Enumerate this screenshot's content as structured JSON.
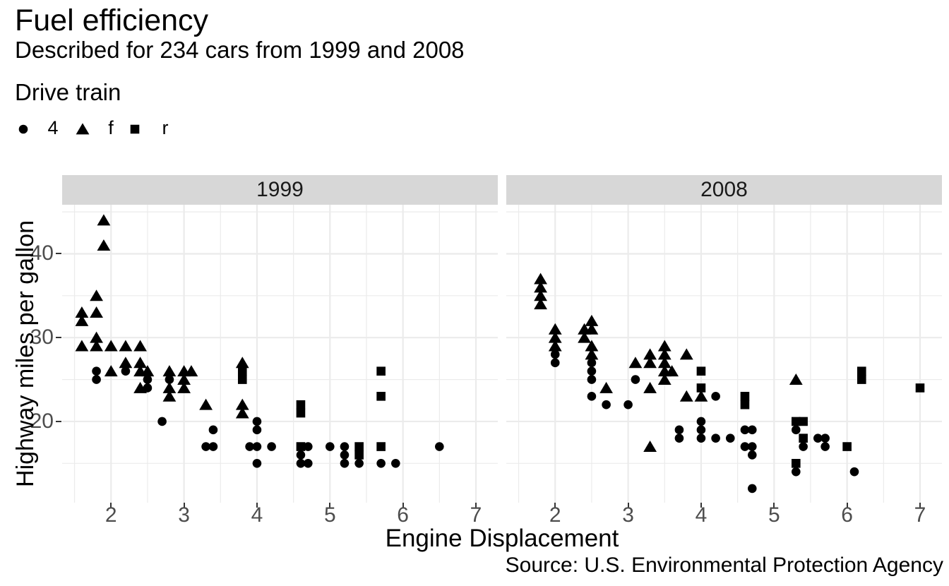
{
  "title": "Fuel efficiency",
  "subtitle": "Described for 234 cars from 1999 and 2008",
  "caption": "Source: U.S. Environmental Protection Agency",
  "legend": {
    "title": "Drive train",
    "items": [
      {
        "label": "4",
        "marker": "circle"
      },
      {
        "label": "f",
        "marker": "triangle"
      },
      {
        "label": "r",
        "marker": "square"
      }
    ]
  },
  "colors": {
    "marker": "#000000",
    "grid": "#ebebeb",
    "panel_bg": "#ffffff",
    "strip_bg": "#d7d7d7",
    "strip_text": "#1a1a1a",
    "tick_label": "#4d4d4d",
    "tick_mark": "#333333",
    "text": "#000000"
  },
  "chart_data": {
    "type": "scatter",
    "title": "Fuel efficiency",
    "subtitle": "Described for 234 cars from 1999 and 2008",
    "xlabel": "Engine Displacement",
    "ylabel": "Highway miles per gallon",
    "legend_title": "Drive train",
    "legend_position": "top-left",
    "grid": true,
    "xlim": [
      1.33,
      7.3
    ],
    "ylim": [
      10.31,
      45.85
    ],
    "x_ticks": [
      2,
      3,
      4,
      5,
      6,
      7
    ],
    "y_ticks": [
      20,
      30,
      40
    ],
    "x_minor": [
      1.5,
      2.5,
      3.5,
      4.5,
      5.5,
      6.5
    ],
    "y_minor": [
      15,
      25,
      35,
      45
    ],
    "facets": [
      {
        "label": "1999",
        "series": [
          {
            "name": "4",
            "marker": "circle",
            "points": [
              [
                1.8,
                26
              ],
              [
                1.8,
                25
              ],
              [
                2.2,
                26
              ],
              [
                2.5,
                25
              ],
              [
                2.5,
                24
              ],
              [
                2.7,
                20
              ],
              [
                2.8,
                25
              ],
              [
                3.3,
                17
              ],
              [
                3.4,
                19
              ],
              [
                3.4,
                17
              ],
              [
                3.9,
                17
              ],
              [
                4.0,
                20
              ],
              [
                4.0,
                19
              ],
              [
                4.0,
                17
              ],
              [
                4.0,
                15
              ],
              [
                4.2,
                17
              ],
              [
                4.6,
                16
              ],
              [
                4.6,
                15
              ],
              [
                4.7,
                17
              ],
              [
                4.7,
                15
              ],
              [
                5.0,
                17
              ],
              [
                5.2,
                17
              ],
              [
                5.2,
                16
              ],
              [
                5.2,
                15
              ],
              [
                5.4,
                15
              ],
              [
                5.7,
                15
              ],
              [
                5.9,
                15
              ],
              [
                6.5,
                17
              ]
            ]
          },
          {
            "name": "f",
            "marker": "triangle",
            "points": [
              [
                1.6,
                33
              ],
              [
                1.6,
                32
              ],
              [
                1.6,
                29
              ],
              [
                1.8,
                35
              ],
              [
                1.8,
                33
              ],
              [
                1.8,
                30
              ],
              [
                1.8,
                29
              ],
              [
                1.9,
                44
              ],
              [
                1.9,
                41
              ],
              [
                2.0,
                29
              ],
              [
                2.0,
                26
              ],
              [
                2.2,
                29
              ],
              [
                2.2,
                27
              ],
              [
                2.4,
                29
              ],
              [
                2.4,
                27
              ],
              [
                2.4,
                26
              ],
              [
                2.4,
                24
              ],
              [
                2.5,
                26
              ],
              [
                2.8,
                26
              ],
              [
                2.8,
                24
              ],
              [
                2.8,
                23
              ],
              [
                3.0,
                26
              ],
              [
                3.0,
                25
              ],
              [
                3.0,
                24
              ],
              [
                3.1,
                26
              ],
              [
                3.3,
                22
              ],
              [
                3.8,
                27
              ],
              [
                3.8,
                22
              ],
              [
                3.8,
                21
              ]
            ]
          },
          {
            "name": "r",
            "marker": "square",
            "points": [
              [
                3.8,
                26
              ],
              [
                3.8,
                25
              ],
              [
                4.6,
                22
              ],
              [
                4.6,
                21
              ],
              [
                4.6,
                17
              ],
              [
                5.4,
                17
              ],
              [
                5.4,
                16
              ],
              [
                5.7,
                26
              ],
              [
                5.7,
                23
              ],
              [
                5.7,
                17
              ]
            ]
          }
        ]
      },
      {
        "label": "2008",
        "series": [
          {
            "name": "4",
            "marker": "circle",
            "points": [
              [
                2.0,
                28
              ],
              [
                2.0,
                27
              ],
              [
                2.5,
                27
              ],
              [
                2.5,
                26
              ],
              [
                2.5,
                25
              ],
              [
                2.5,
                23
              ],
              [
                2.7,
                22
              ],
              [
                3.0,
                22
              ],
              [
                3.1,
                25
              ],
              [
                3.7,
                19
              ],
              [
                3.7,
                18
              ],
              [
                4.0,
                20
              ],
              [
                4.0,
                19
              ],
              [
                4.0,
                18
              ],
              [
                4.2,
                23
              ],
              [
                4.2,
                18
              ],
              [
                4.4,
                18
              ],
              [
                4.6,
                19
              ],
              [
                4.6,
                17
              ],
              [
                4.7,
                19
              ],
              [
                4.7,
                17
              ],
              [
                4.7,
                16
              ],
              [
                4.7,
                12
              ],
              [
                5.3,
                19
              ],
              [
                5.3,
                14
              ],
              [
                5.4,
                17
              ],
              [
                5.6,
                18
              ],
              [
                5.7,
                18
              ],
              [
                5.7,
                17
              ],
              [
                6.1,
                14
              ]
            ]
          },
          {
            "name": "f",
            "marker": "triangle",
            "points": [
              [
                1.8,
                37
              ],
              [
                1.8,
                36
              ],
              [
                1.8,
                35
              ],
              [
                1.8,
                34
              ],
              [
                2.0,
                31
              ],
              [
                2.0,
                30
              ],
              [
                2.0,
                29
              ],
              [
                2.4,
                31
              ],
              [
                2.4,
                30
              ],
              [
                2.5,
                32
              ],
              [
                2.5,
                31
              ],
              [
                2.5,
                29
              ],
              [
                2.5,
                28
              ],
              [
                2.7,
                24
              ],
              [
                3.1,
                27
              ],
              [
                3.3,
                28
              ],
              [
                3.3,
                27
              ],
              [
                3.3,
                24
              ],
              [
                3.3,
                17
              ],
              [
                3.5,
                29
              ],
              [
                3.5,
                28
              ],
              [
                3.5,
                27
              ],
              [
                3.5,
                26
              ],
              [
                3.5,
                25
              ],
              [
                3.6,
                26
              ],
              [
                3.8,
                28
              ],
              [
                3.8,
                23
              ],
              [
                4.0,
                23
              ],
              [
                5.3,
                25
              ]
            ]
          },
          {
            "name": "r",
            "marker": "square",
            "points": [
              [
                4.0,
                26
              ],
              [
                4.0,
                24
              ],
              [
                4.6,
                23
              ],
              [
                4.6,
                22
              ],
              [
                5.3,
                20
              ],
              [
                5.3,
                15
              ],
              [
                5.4,
                20
              ],
              [
                5.4,
                18
              ],
              [
                6.0,
                17
              ],
              [
                6.2,
                26
              ],
              [
                6.2,
                25
              ],
              [
                7.0,
                24
              ]
            ]
          }
        ]
      }
    ]
  }
}
